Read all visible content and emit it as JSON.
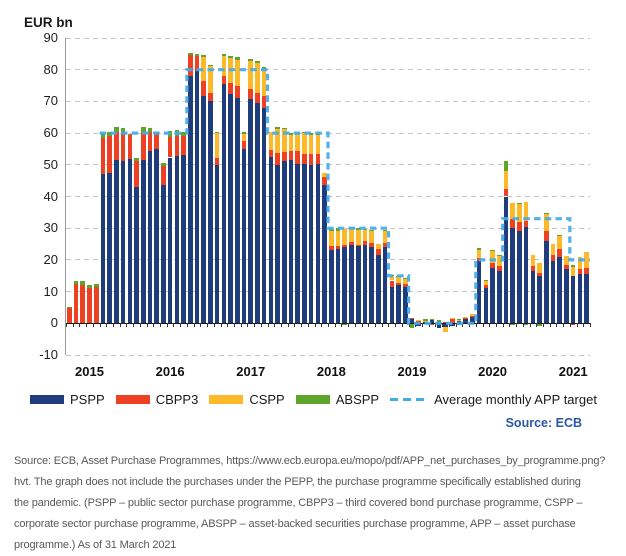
{
  "header": {
    "axis_title": "EUR bn"
  },
  "source_note": "Source: ECB",
  "legend": {
    "items": [
      {
        "label": "PSPP",
        "color": "#1F3C7D",
        "style": "swatch"
      },
      {
        "label": "CBPP3",
        "color": "#EE4023",
        "style": "swatch"
      },
      {
        "label": "CSPP",
        "color": "#FDB927",
        "style": "swatch"
      },
      {
        "label": "ABSPP",
        "color": "#5EA52B",
        "style": "swatch"
      },
      {
        "label": "Average monthly APP target",
        "color": "#45AAE8",
        "style": "dashed"
      }
    ]
  },
  "caption": {
    "lines": [
      "Source: ECB, Asset Purchase Programmes, https://www.ecb.europa.eu/mopo/pdf/APP_net_purchases_by_programme.png?",
      "hvt. The graph does not include the purchases under the PEPP, the purchase programme specifically established during",
      "the pandemic. (PSPP – public sector purchase programme, CBPP3 – third covered bond purchase programme, CSPP –",
      "corporate sector purchase programme, ABSPP – asset-backed securities purchase programme, APP – asset purchase",
      "programme.) As of 31 March 2021"
    ]
  },
  "chart_data": {
    "type": "bar",
    "subtype": "stacked-monthly-bars-with-dashed-target-step-line",
    "title": "EUR bn",
    "ylabel": "EUR bn",
    "xlabel": "",
    "ylim": [
      -10,
      90
    ],
    "yticks": [
      90,
      80,
      70,
      60,
      50,
      40,
      30,
      20,
      10,
      0,
      -10
    ],
    "grid": "horizontal-dashed",
    "legend_position": "bottom",
    "months": [
      "2014-10",
      "2014-11",
      "2014-12",
      "2015-01",
      "2015-02",
      "2015-03",
      "2015-04",
      "2015-05",
      "2015-06",
      "2015-07",
      "2015-08",
      "2015-09",
      "2015-10",
      "2015-11",
      "2015-12",
      "2016-01",
      "2016-02",
      "2016-03",
      "2016-04",
      "2016-05",
      "2016-06",
      "2016-07",
      "2016-08",
      "2016-09",
      "2016-10",
      "2016-11",
      "2016-12",
      "2017-01",
      "2017-02",
      "2017-03",
      "2017-04",
      "2017-05",
      "2017-06",
      "2017-07",
      "2017-08",
      "2017-09",
      "2017-10",
      "2017-11",
      "2017-12",
      "2018-01",
      "2018-02",
      "2018-03",
      "2018-04",
      "2018-05",
      "2018-06",
      "2018-07",
      "2018-08",
      "2018-09",
      "2018-10",
      "2018-11",
      "2018-12",
      "2019-01",
      "2019-02",
      "2019-03",
      "2019-04",
      "2019-05",
      "2019-06",
      "2019-07",
      "2019-08",
      "2019-09",
      "2019-10",
      "2019-11",
      "2019-12",
      "2020-01",
      "2020-02",
      "2020-03",
      "2020-04",
      "2020-05",
      "2020-06",
      "2020-07",
      "2020-08",
      "2020-09",
      "2020-10",
      "2020-11",
      "2020-12",
      "2021-01",
      "2021-02",
      "2021-03"
    ],
    "series": [
      {
        "name": "PSPP",
        "color": "#1F3C7D",
        "values": [
          0,
          0,
          0,
          0,
          0,
          47,
          47.5,
          51.5,
          51.3,
          51.8,
          42.9,
          51.5,
          54.4,
          55,
          43.5,
          52.3,
          52.8,
          53,
          78,
          79.5,
          71.7,
          70,
          50,
          75.4,
          72.2,
          71.2,
          55,
          70.6,
          69.6,
          68,
          52.5,
          50,
          51.3,
          51.5,
          50.2,
          50.3,
          49.8,
          50.3,
          43.7,
          23,
          23.5,
          24,
          24.7,
          24.3,
          24.7,
          24,
          21.6,
          24,
          11.4,
          12,
          11.5,
          1.5,
          -1,
          0.4,
          1.2,
          -1.4,
          -1.2,
          -1,
          0.8,
          1.2,
          2,
          19.5,
          11,
          17.5,
          16.5,
          40,
          30,
          29,
          30.5,
          16.5,
          15,
          26,
          19.5,
          21,
          17,
          14.8,
          15.5,
          15.6
        ]
      },
      {
        "name": "CBPP3",
        "color": "#EE4023",
        "values": [
          4.8,
          12.4,
          12,
          11,
          11.3,
          11.5,
          11.5,
          9,
          9,
          7.5,
          8.4,
          8.5,
          5.8,
          4.6,
          6,
          6.5,
          6.3,
          6,
          6.5,
          4.8,
          4.7,
          2.7,
          2,
          2.6,
          3.7,
          3.6,
          2.5,
          3.2,
          3.1,
          3.7,
          2.3,
          3.7,
          2.6,
          2.7,
          4,
          3.2,
          3.5,
          3,
          2.6,
          1.5,
          1,
          0.6,
          1,
          0.5,
          1.2,
          1.2,
          1.9,
          1.4,
          2.1,
          0.6,
          1,
          0.3,
          0.8,
          0,
          -0.6,
          0.2,
          0.5,
          1.5,
          -0.5,
          0.4,
          0.3,
          1.2,
          1,
          1.5,
          1.5,
          2.3,
          3,
          3.1,
          1.9,
          1.5,
          1,
          3,
          2,
          2.5,
          1.5,
          -0.5,
          1.5,
          1.8
        ]
      },
      {
        "name": "CSPP",
        "color": "#FDB927",
        "values": [
          0,
          0,
          0,
          0,
          0,
          0,
          0,
          0,
          0,
          0,
          0,
          0,
          0,
          0,
          0,
          0,
          0,
          0,
          0,
          0,
          7.5,
          8.6,
          8,
          6.3,
          7.9,
          8.4,
          2.1,
          8.9,
          9.5,
          8.3,
          5.7,
          7.6,
          7.3,
          5.1,
          5.6,
          6.5,
          6.2,
          6.2,
          1.1,
          4.6,
          4.7,
          5,
          3.9,
          4.6,
          3.6,
          3.8,
          1.5,
          3.9,
          1.3,
          2,
          1.4,
          0,
          0.3,
          0.3,
          0,
          0,
          -1.5,
          0.3,
          0.2,
          0.3,
          0.5,
          2.3,
          1.5,
          3.9,
          3.4,
          5.8,
          5,
          5.5,
          6,
          3.5,
          3.1,
          5.5,
          3.5,
          4,
          2.6,
          3,
          3.9,
          5.2
        ]
      },
      {
        "name": "ABSPP",
        "color": "#5EA52B",
        "values": [
          0.2,
          0.8,
          1.5,
          1,
          1.2,
          1.5,
          1.2,
          1.5,
          1.4,
          0.5,
          1,
          2,
          1.3,
          0.6,
          1,
          1.9,
          1.8,
          1.5,
          0.7,
          0.7,
          0.6,
          0.3,
          0.5,
          0.5,
          0.4,
          0.8,
          0.6,
          0.8,
          0.4,
          0.8,
          -0.3,
          0.6,
          0.3,
          0.8,
          0.2,
          0.3,
          0.6,
          0.6,
          0,
          0.6,
          0.9,
          -0.4,
          0.5,
          0.6,
          0.4,
          0.3,
          0,
          0.2,
          0.3,
          0.4,
          0.3,
          -1.5,
          0,
          0.6,
          0.2,
          0.8,
          0,
          0,
          0.3,
          0,
          0,
          0.7,
          0.2,
          0.3,
          0.2,
          3,
          -0.4,
          0.5,
          -0.5,
          0,
          -0.7,
          0.4,
          0,
          0.5,
          -0.3,
          0.5,
          0,
          0
        ]
      }
    ],
    "target_line": {
      "name": "Average monthly APP target",
      "color": "#45AAE8",
      "style": "dashed",
      "segments": [
        {
          "start": "2015-03",
          "end": "2016-03",
          "value": 60
        },
        {
          "start": "2016-04",
          "end": "2017-03",
          "value": 80
        },
        {
          "start": "2017-04",
          "end": "2017-12",
          "value": 60
        },
        {
          "start": "2018-01",
          "end": "2018-09",
          "value": 30
        },
        {
          "start": "2018-10",
          "end": "2018-12",
          "value": 15
        },
        {
          "start": "2019-01",
          "end": "2019-10",
          "value": 0
        },
        {
          "start": "2019-11",
          "end": "2020-02",
          "value": 20
        },
        {
          "start": "2020-03",
          "end": "2020-12",
          "value": 33
        },
        {
          "start": "2021-01",
          "end": "2021-03",
          "value": 20
        }
      ]
    },
    "year_labels": [
      {
        "label": "2015",
        "month": "2015-01"
      },
      {
        "label": "2016",
        "month": "2016-01"
      },
      {
        "label": "2017",
        "month": "2017-01"
      },
      {
        "label": "2018",
        "month": "2018-01"
      },
      {
        "label": "2019",
        "month": "2019-01"
      },
      {
        "label": "2020",
        "month": "2020-01"
      },
      {
        "label": "2021",
        "month": "2021-01"
      }
    ]
  }
}
